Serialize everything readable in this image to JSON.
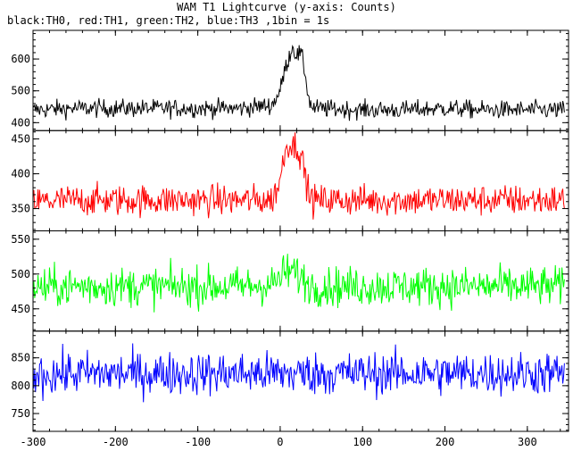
{
  "chart_data": {
    "type": "line",
    "title": "WAM T1 Lightcurve (y-axis: Counts)",
    "subtitle": "black:TH0, red:TH1, green:TH2, blue:TH3 ,1bin = 1s",
    "x_range": [
      -300,
      350
    ],
    "x_ticks": [
      -300,
      -200,
      -100,
      0,
      100,
      200,
      300
    ],
    "x_tick_labels": [
      "-300",
      "-200",
      "-100",
      "0",
      "100",
      "200",
      "300"
    ],
    "x_step": 1,
    "panels": [
      {
        "series": "TH0",
        "color": "#000000",
        "ylim": [
          375,
          690
        ],
        "yticks": [
          400,
          500,
          600
        ],
        "baseline": 445,
        "noise": 28,
        "bump": {
          "start": 0,
          "end": 32,
          "peak": 620
        },
        "points": [
          [
            -300,
            440
          ],
          [
            -250,
            445
          ],
          [
            -200,
            445
          ],
          [
            -150,
            445
          ],
          [
            -100,
            445
          ],
          [
            -50,
            445
          ],
          [
            -10,
            455
          ],
          [
            0,
            500
          ],
          [
            5,
            560
          ],
          [
            10,
            600
          ],
          [
            15,
            640
          ],
          [
            20,
            610
          ],
          [
            25,
            620
          ],
          [
            30,
            560
          ],
          [
            35,
            470
          ],
          [
            40,
            445
          ],
          [
            100,
            440
          ],
          [
            150,
            440
          ],
          [
            200,
            445
          ],
          [
            250,
            440
          ],
          [
            300,
            440
          ],
          [
            345,
            440
          ]
        ]
      },
      {
        "series": "TH1",
        "color": "#ff0000",
        "ylim": [
          318,
          462
        ],
        "yticks": [
          350,
          400,
          450
        ],
        "baseline": 362,
        "noise": 22,
        "bump": {
          "start": 0,
          "end": 32,
          "peak": 440
        },
        "points": [
          [
            -300,
            360
          ],
          [
            -250,
            362
          ],
          [
            -200,
            362
          ],
          [
            -150,
            362
          ],
          [
            -100,
            362
          ],
          [
            -50,
            362
          ],
          [
            -10,
            362
          ],
          [
            0,
            390
          ],
          [
            5,
            430
          ],
          [
            10,
            445
          ],
          [
            15,
            440
          ],
          [
            20,
            440
          ],
          [
            25,
            430
          ],
          [
            30,
            400
          ],
          [
            35,
            370
          ],
          [
            40,
            362
          ],
          [
            100,
            362
          ],
          [
            150,
            362
          ],
          [
            200,
            362
          ],
          [
            250,
            362
          ],
          [
            300,
            362
          ],
          [
            345,
            362
          ]
        ]
      },
      {
        "series": "TH2",
        "color": "#00ff00",
        "ylim": [
          418,
          562
        ],
        "yticks": [
          450,
          500,
          550
        ],
        "baseline": 482,
        "noise": 28,
        "bump": {
          "start": 0,
          "end": 35,
          "peak": 505
        },
        "points": [
          [
            -300,
            480
          ],
          [
            -250,
            482
          ],
          [
            -200,
            482
          ],
          [
            -150,
            482
          ],
          [
            -100,
            482
          ],
          [
            -50,
            482
          ],
          [
            -10,
            485
          ],
          [
            0,
            495
          ],
          [
            10,
            505
          ],
          [
            20,
            500
          ],
          [
            30,
            490
          ],
          [
            40,
            482
          ],
          [
            100,
            482
          ],
          [
            150,
            482
          ],
          [
            200,
            482
          ],
          [
            250,
            482
          ],
          [
            300,
            482
          ],
          [
            345,
            482
          ]
        ]
      },
      {
        "series": "TH3",
        "color": "#0000ff",
        "ylim": [
          718,
          898
        ],
        "yticks": [
          750,
          800,
          850
        ],
        "baseline": 822,
        "noise": 38,
        "bump": null,
        "points": [
          [
            -300,
            820
          ],
          [
            -250,
            822
          ],
          [
            -200,
            822
          ],
          [
            -150,
            822
          ],
          [
            -100,
            822
          ],
          [
            -50,
            822
          ],
          [
            0,
            822
          ],
          [
            50,
            822
          ],
          [
            100,
            822
          ],
          [
            150,
            822
          ],
          [
            200,
            822
          ],
          [
            250,
            822
          ],
          [
            300,
            822
          ],
          [
            345,
            822
          ]
        ]
      }
    ]
  }
}
